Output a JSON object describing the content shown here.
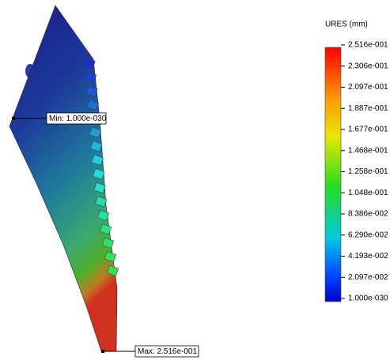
{
  "legend": {
    "title": "URES (mm)",
    "labels": [
      "2.516e-001",
      "2.306e-001",
      "2.097e-001",
      "1.887e-001",
      "1.677e-001",
      "1.468e-001",
      "1.258e-001",
      "1.048e-001",
      "8.386e-002",
      "6.290e-002",
      "4.193e-002",
      "2.097e-002",
      "1.000e-030"
    ]
  },
  "annotations": {
    "min": "Min: 1.000e-030",
    "max": "Max: 2.516e-001"
  }
}
